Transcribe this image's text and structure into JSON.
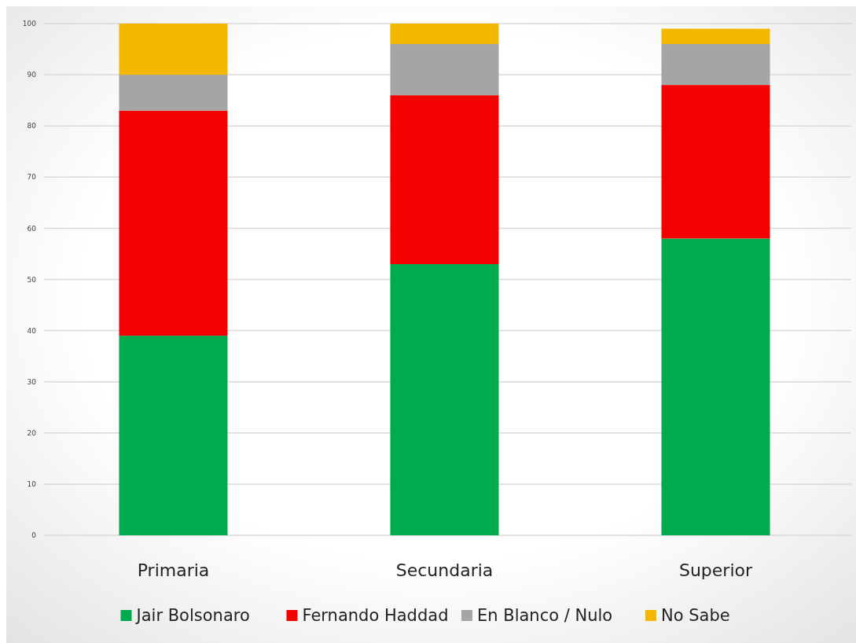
{
  "chart_data": {
    "type": "bar",
    "stacked": true,
    "categories": [
      "Primaria",
      "Secundaria",
      "Superior"
    ],
    "series": [
      {
        "name": "Jair Bolsonaro",
        "color": "#00aa4e",
        "values": [
          39,
          53,
          58
        ]
      },
      {
        "name": "Fernando Haddad",
        "color": "#f50000",
        "values": [
          44,
          33,
          30
        ]
      },
      {
        "name": "En Blanco / Nulo",
        "color": "#a5a5a5",
        "values": [
          7,
          10,
          8
        ]
      },
      {
        "name": "No Sabe",
        "color": "#f2b800",
        "values": [
          10,
          4,
          3
        ]
      }
    ],
    "ylim": [
      0,
      100
    ],
    "yticks": [
      0,
      10,
      20,
      30,
      40,
      50,
      60,
      70,
      80,
      90,
      100
    ],
    "grid": "y",
    "legend": "bottom"
  }
}
